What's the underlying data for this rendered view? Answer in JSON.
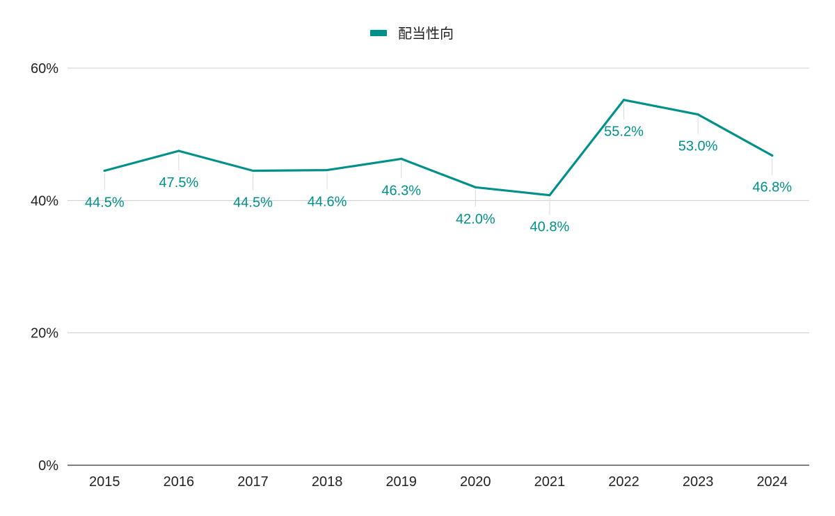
{
  "chart_data": {
    "type": "line",
    "legend": {
      "position": "top",
      "label": "配当性向"
    },
    "categories": [
      "2015",
      "2016",
      "2017",
      "2018",
      "2019",
      "2020",
      "2021",
      "2022",
      "2023",
      "2024"
    ],
    "series": [
      {
        "name": "配当性向",
        "color": "#00908A",
        "values": [
          44.5,
          47.5,
          44.5,
          44.6,
          46.3,
          42.0,
          40.8,
          55.2,
          53.0,
          46.8
        ],
        "labels": [
          "44.5%",
          "47.5%",
          "44.5%",
          "44.6%",
          "46.3%",
          "42.0%",
          "40.8%",
          "55.2%",
          "53.0%",
          "46.8%"
        ]
      }
    ],
    "yticks": [
      0,
      20,
      40,
      60
    ],
    "ytick_labels": [
      "0%",
      "20%",
      "40%",
      "60%"
    ],
    "ylim": [
      0,
      60
    ],
    "grid": true,
    "title": "",
    "xlabel": "",
    "ylabel": ""
  }
}
